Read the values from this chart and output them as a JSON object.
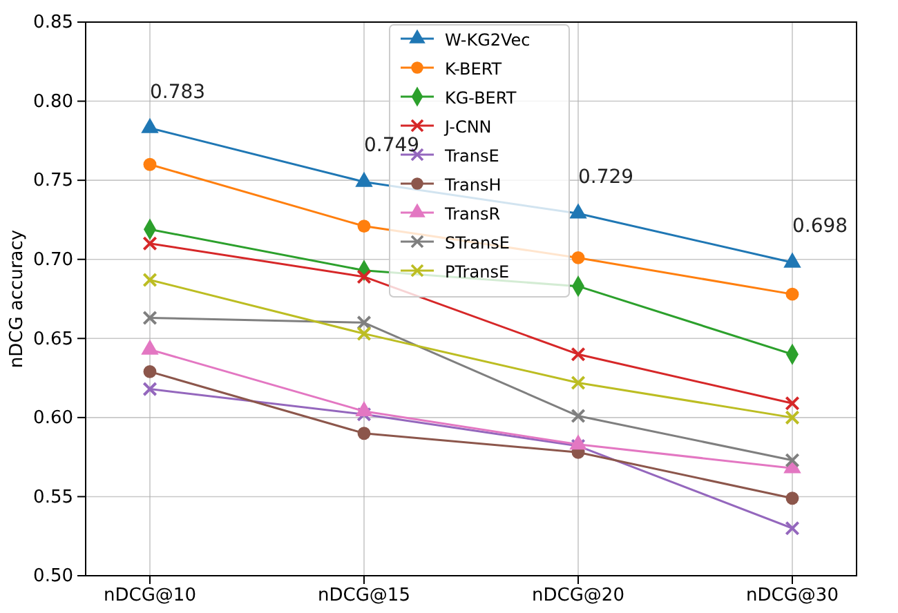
{
  "chart_data": {
    "type": "line",
    "ylabel": "nDCG accuracy",
    "categories": [
      "nDCG@10",
      "nDCG@15",
      "nDCG@20",
      "nDCG@30"
    ],
    "ylim": [
      0.5,
      0.85
    ],
    "yticks": [
      {
        "value": 0.5,
        "label": "0.50"
      },
      0.55,
      {
        "value": 0.6,
        "label": "0.60"
      },
      0.65,
      {
        "value": 0.7,
        "label": "0.70"
      },
      0.75,
      {
        "value": 0.8,
        "label": "0.80"
      },
      0.85
    ],
    "grid": true,
    "legend": "top",
    "series": [
      {
        "name": "W-KG2Vec",
        "color": "#1f77b4",
        "marker": "triangle",
        "values": [
          0.783,
          0.749,
          0.729,
          0.698
        ],
        "value_labels": [
          "0.783",
          "0.749",
          "0.729",
          "0.698"
        ]
      },
      {
        "name": "K-BERT",
        "color": "#ff7f0e",
        "marker": "circle",
        "values": [
          0.76,
          0.721,
          0.701,
          0.678
        ]
      },
      {
        "name": "KG-BERT",
        "color": "#2ca02c",
        "marker": "diamond",
        "values": [
          0.719,
          0.693,
          0.683,
          0.64
        ]
      },
      {
        "name": "J-CNN",
        "color": "#d62728",
        "marker": "cross",
        "values": [
          0.71,
          0.689,
          0.64,
          0.609
        ]
      },
      {
        "name": "TransE",
        "color": "#9467bd",
        "marker": "cross",
        "values": [
          0.618,
          0.602,
          0.582,
          0.53
        ]
      },
      {
        "name": "TransH",
        "color": "#8c564b",
        "marker": "circle",
        "values": [
          0.629,
          0.59,
          0.578,
          0.549
        ]
      },
      {
        "name": "TransR",
        "color": "#e377c2",
        "marker": "triangle",
        "values": [
          0.643,
          0.604,
          0.583,
          0.568
        ]
      },
      {
        "name": "STransE",
        "color": "#7f7f7f",
        "marker": "cross",
        "values": [
          0.663,
          0.66,
          0.601,
          0.573
        ]
      },
      {
        "name": "PTransE",
        "color": "#bcbd22",
        "marker": "cross",
        "values": [
          0.687,
          0.653,
          0.622,
          0.6
        ]
      }
    ]
  }
}
